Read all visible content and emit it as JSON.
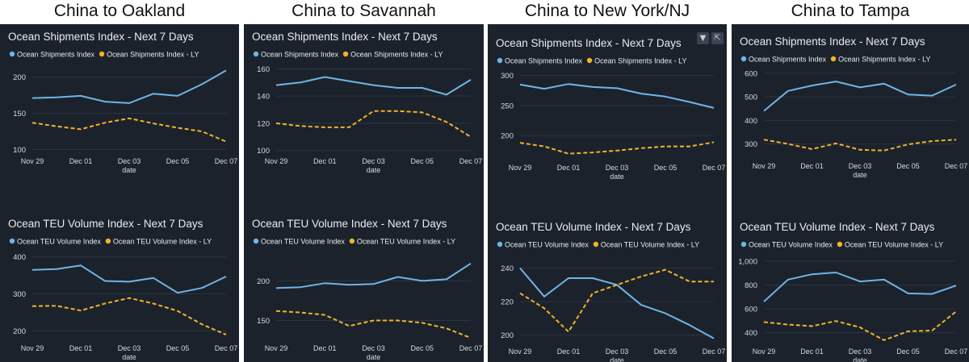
{
  "colors": {
    "panel_bg": "#1b222c",
    "current": "#70b4e6",
    "last_year": "#f2b22b",
    "text": "#e9ecf1",
    "axis_text": "#d7dbe2",
    "grid": "#2c3440"
  },
  "icons": [
    "filter-icon",
    "expand-icon"
  ],
  "columns": [
    {
      "title": "China to Oakland",
      "charts": [
        {
          "type": "line",
          "title": "Ocean Shipments Index - Next 7 Days",
          "xlabel": "date",
          "categories": [
            "Nov 29",
            "Dec 01",
            "Dec 03",
            "Dec 05",
            "Dec 07"
          ],
          "ylim": [
            95,
            215
          ],
          "yticks": [
            "100",
            "150",
            "200"
          ],
          "ytick_values": [
            100,
            150,
            200
          ],
          "x": [
            0,
            1,
            2,
            3,
            4,
            5,
            6,
            7,
            8
          ],
          "series": [
            {
              "name": "Ocean Shipments Index",
              "style": "solid",
              "values": [
                171,
                172,
                174,
                166,
                164,
                177,
                174,
                190,
                209
              ]
            },
            {
              "name": "Ocean Shipments Index - LY",
              "style": "dashed",
              "values": [
                137,
                132,
                128,
                137,
                143,
                136,
                130,
                125,
                111
              ]
            }
          ]
        },
        {
          "type": "line",
          "title": "Ocean TEU Volume Index - Next 7 Days",
          "xlabel": "date",
          "categories": [
            "Nov 29",
            "Dec 01",
            "Dec 03",
            "Dec 05",
            "Dec 07"
          ],
          "ylim": [
            175,
            410
          ],
          "yticks": [
            "200",
            "300",
            "400"
          ],
          "ytick_values": [
            200,
            300,
            400
          ],
          "x": [
            0,
            1,
            2,
            3,
            4,
            5,
            6,
            7,
            8
          ],
          "series": [
            {
              "name": "Ocean TEU Volume Index",
              "style": "solid",
              "values": [
                365,
                367,
                377,
                335,
                333,
                343,
                303,
                316,
                347
              ]
            },
            {
              "name": "Ocean TEU Volume Index - LY",
              "style": "dashed",
              "values": [
                267,
                268,
                255,
                274,
                289,
                274,
                254,
                218,
                190
              ]
            }
          ]
        }
      ]
    },
    {
      "title": "China to Savannah",
      "charts": [
        {
          "type": "line",
          "title": "Ocean Shipments Index - Next 7 Days",
          "xlabel": "date",
          "categories": [
            "Nov 29",
            "Dec 01",
            "Dec 03",
            "Dec 05",
            "Dec 07"
          ],
          "ylim": [
            98,
            162
          ],
          "yticks": [
            "100",
            "120",
            "140",
            "160"
          ],
          "ytick_values": [
            100,
            120,
            140,
            160
          ],
          "x": [
            0,
            1,
            2,
            3,
            4,
            5,
            6,
            7,
            8
          ],
          "series": [
            {
              "name": "Ocean Shipments Index",
              "style": "solid",
              "values": [
                148,
                150,
                154,
                151,
                148,
                146,
                146,
                141,
                152
              ]
            },
            {
              "name": "Ocean Shipments Index - LY",
              "style": "dashed",
              "values": [
                120,
                118,
                117,
                117,
                129,
                129,
                128,
                121,
                110
              ]
            }
          ]
        },
        {
          "type": "line",
          "title": "Ocean TEU Volume Index - Next 7 Days",
          "xlabel": "date",
          "categories": [
            "Nov 29",
            "Dec 01",
            "Dec 03",
            "Dec 05",
            "Dec 07"
          ],
          "ylim": [
            125,
            235
          ],
          "yticks": [
            "150",
            "200"
          ],
          "ytick_values": [
            150,
            200
          ],
          "x": [
            0,
            1,
            2,
            3,
            4,
            5,
            6,
            7,
            8
          ],
          "series": [
            {
              "name": "Ocean TEU Volume Index",
              "style": "solid",
              "values": [
                191,
                192,
                197,
                195,
                196,
                205,
                200,
                202,
                222
              ]
            },
            {
              "name": "Ocean TEU Volume Index - LY",
              "style": "dashed",
              "values": [
                162,
                160,
                157,
                143,
                150,
                150,
                147,
                140,
                128
              ]
            }
          ]
        }
      ]
    },
    {
      "title": "China to New York/NJ",
      "charts": [
        {
          "type": "line",
          "title": "Ocean Shipments Index - Next 7 Days",
          "xlabel": "date",
          "categories": [
            "Nov 29",
            "Dec 01",
            "Dec 03",
            "Dec 05",
            "Dec 07"
          ],
          "ylim": [
            160,
            305
          ],
          "yticks": [
            "200",
            "250",
            "300"
          ],
          "ytick_values": [
            200,
            250,
            300
          ],
          "x": [
            0,
            1,
            2,
            3,
            4,
            5,
            6,
            7,
            8
          ],
          "series": [
            {
              "name": "Ocean Shipments Index",
              "style": "solid",
              "values": [
                285,
                278,
                286,
                281,
                279,
                270,
                265,
                256,
                246
              ]
            },
            {
              "name": "Ocean Shipments Index - LY",
              "style": "dashed",
              "values": [
                188,
                182,
                170,
                172,
                175,
                179,
                182,
                182,
                189
              ]
            }
          ]
        },
        {
          "type": "line",
          "title": "Ocean TEU Volume Index - Next 7 Days",
          "xlabel": "date",
          "categories": [
            "Nov 29",
            "Dec 01",
            "Dec 03",
            "Dec 05",
            "Dec 07"
          ],
          "ylim": [
            195,
            247
          ],
          "yticks": [
            "200",
            "220",
            "240"
          ],
          "ytick_values": [
            200,
            220,
            240
          ],
          "x": [
            0,
            1,
            2,
            3,
            4,
            5,
            6,
            7,
            8
          ],
          "series": [
            {
              "name": "Ocean TEU Volume Index",
              "style": "solid",
              "values": [
                240,
                223,
                234,
                234,
                230,
                218,
                213,
                206,
                198
              ]
            },
            {
              "name": "Ocean TEU Volume Index - LY",
              "style": "dashed",
              "values": [
                225,
                216,
                202,
                225,
                230,
                235,
                239,
                232,
                232
              ]
            }
          ]
        }
      ]
    },
    {
      "title": "China to Tampa",
      "charts": [
        {
          "type": "line",
          "title": "Ocean Shipments Index - Next 7 Days",
          "xlabel": "date",
          "categories": [
            "Nov 29",
            "Dec 01",
            "Dec 03",
            "Dec 05",
            "Dec 07"
          ],
          "ylim": [
            240,
            610
          ],
          "yticks": [
            "300",
            "400",
            "500",
            "600"
          ],
          "ytick_values": [
            300,
            400,
            500,
            600
          ],
          "x": [
            0,
            1,
            2,
            3,
            4,
            5,
            6,
            7,
            8
          ],
          "series": [
            {
              "name": "Ocean Shipments Index",
              "style": "solid",
              "values": [
                440,
                525,
                548,
                565,
                540,
                556,
                510,
                505,
                552
              ]
            },
            {
              "name": "Ocean Shipments Index - LY",
              "style": "dashed",
              "values": [
                318,
                300,
                278,
                302,
                275,
                272,
                298,
                312,
                318
              ]
            }
          ]
        },
        {
          "type": "line",
          "title": "Ocean TEU Volume Index - Next 7 Days",
          "xlabel": "date",
          "categories": [
            "Nov 29",
            "Dec 01",
            "Dec 03",
            "Dec 05",
            "Dec 07"
          ],
          "ylim": [
            310,
            1040
          ],
          "yticks": [
            "400",
            "600",
            "800",
            "1,000"
          ],
          "ytick_values": [
            400,
            600,
            800,
            1000
          ],
          "x": [
            0,
            1,
            2,
            3,
            4,
            5,
            6,
            7,
            8
          ],
          "series": [
            {
              "name": "Ocean TEU Volume Index",
              "style": "solid",
              "values": [
                660,
                845,
                890,
                905,
                830,
                845,
                730,
                725,
                795
              ]
            },
            {
              "name": "Ocean TEU Volume Index - LY",
              "style": "dashed",
              "values": [
                490,
                468,
                455,
                498,
                445,
                338,
                412,
                418,
                578
              ]
            }
          ]
        }
      ]
    }
  ]
}
